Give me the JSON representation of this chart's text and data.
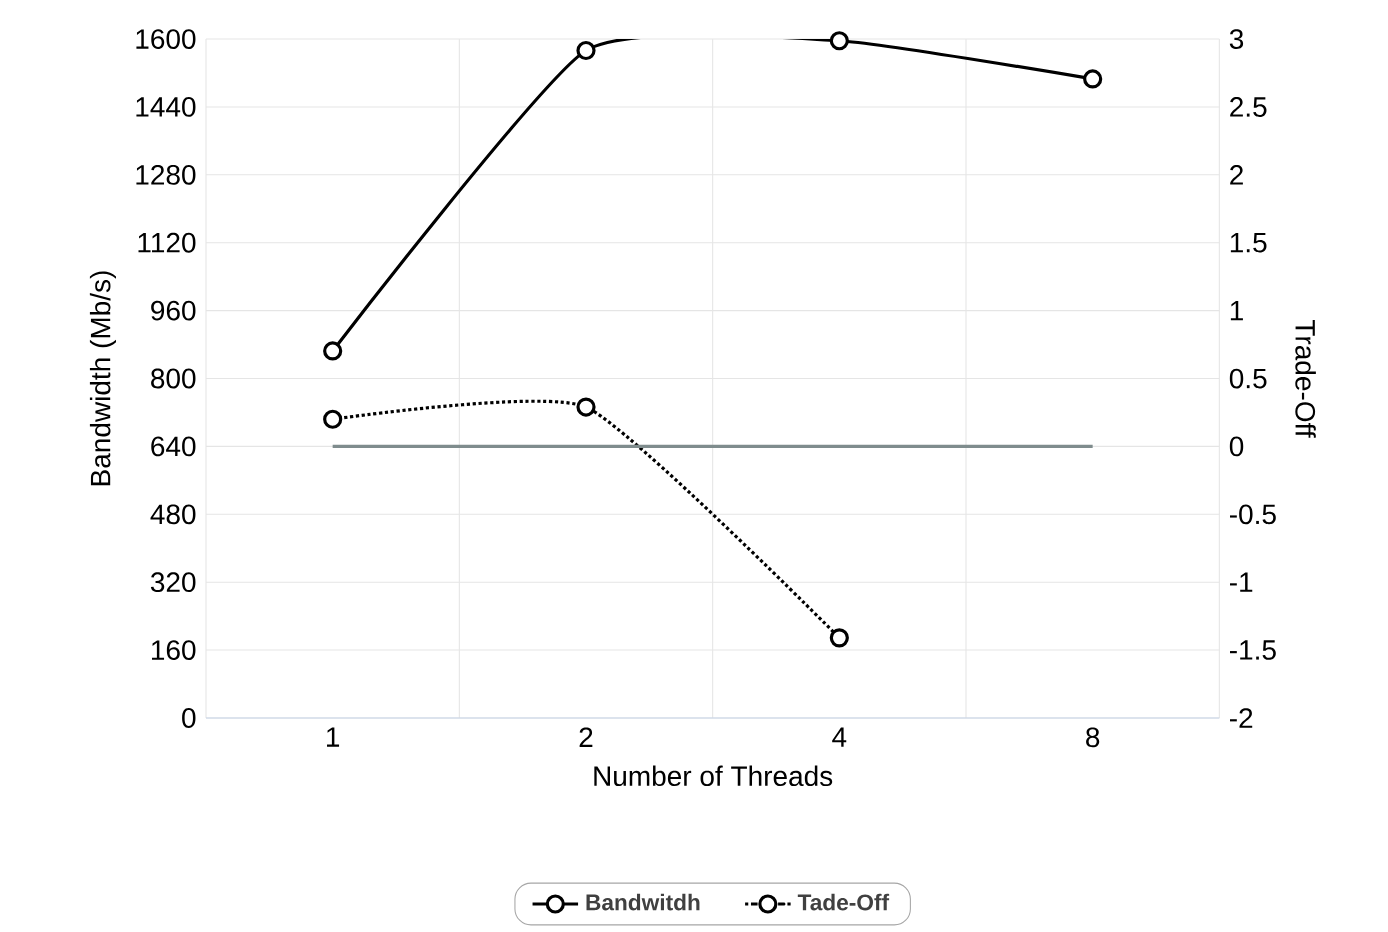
{
  "chart_data": {
    "type": "line",
    "xlabel": "Number of Threads",
    "ylabel": "Bandwidth (Mb/s)",
    "y2label": "Trade-Off",
    "categories": [
      "1",
      "2",
      "4",
      "8"
    ],
    "series": [
      {
        "name": "Bandwitdh",
        "color": "#000000",
        "values": [
          865,
          1573,
          1596,
          1506
        ],
        "line_style": "solid"
      },
      {
        "name": "Tade-Off",
        "color": "#000000",
        "values": [
          0.2,
          0.29,
          -1.41,
          null
        ],
        "line_style": "dotted",
        "axis": "y2"
      }
    ],
    "ylim": [
      0,
      1600
    ],
    "yticks": [
      0,
      160,
      320,
      480,
      640,
      800,
      960,
      1120,
      1280,
      1440,
      1600
    ],
    "y2lim": [
      -2,
      3
    ],
    "y2ticks": [
      -2,
      -1.5,
      -1,
      -0.5,
      0,
      0.5,
      1,
      1.5,
      2,
      2.5,
      3
    ],
    "ref_lines": [
      {
        "axis": "y2",
        "value": 0,
        "color": "#7f8c8d"
      }
    ],
    "grid": true,
    "legend": "bottom",
    "marker": "circle"
  }
}
